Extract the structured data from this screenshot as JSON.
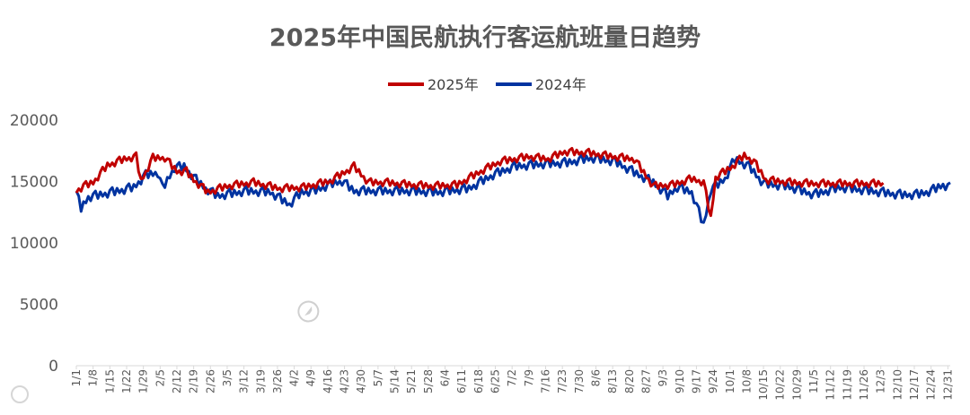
{
  "chart_data": {
    "type": "line",
    "title": "2025年中国民航执行客运航班量日趋势",
    "ylim": [
      0,
      20000
    ],
    "yticks": [
      "20000",
      "15000",
      "10000",
      "5000",
      "0"
    ],
    "x_tick_labels": [
      "1/1",
      "1/8",
      "1/15",
      "1/22",
      "1/29",
      "2/5",
      "2/12",
      "2/19",
      "2/26",
      "3/5",
      "3/12",
      "3/19",
      "3/26",
      "4/2",
      "4/9",
      "4/16",
      "4/23",
      "4/30",
      "5/7",
      "5/14",
      "5/21",
      "5/28",
      "6/4",
      "6/11",
      "6/18",
      "6/25",
      "7/2",
      "7/9",
      "7/16",
      "7/23",
      "7/30",
      "8/6",
      "8/13",
      "8/20",
      "8/27",
      "9/3",
      "9/10",
      "9/17",
      "9/24",
      "10/1",
      "10/8",
      "10/15",
      "10/22",
      "10/29",
      "11/5",
      "11/12",
      "11/19",
      "11/26",
      "12/3",
      "12/10",
      "12/17",
      "12/24",
      "12/31"
    ],
    "series": [
      {
        "name": "2025年",
        "color": "#c00000",
        "anchors": [
          [
            1,
            14200
          ],
          [
            4,
            14600
          ],
          [
            8,
            14900
          ],
          [
            14,
            16300
          ],
          [
            21,
            16800
          ],
          [
            26,
            17000
          ],
          [
            28,
            15000
          ],
          [
            33,
            16900
          ],
          [
            38,
            16900
          ],
          [
            43,
            15800
          ],
          [
            47,
            15800
          ],
          [
            50,
            15100
          ],
          [
            56,
            14100
          ],
          [
            64,
            14600
          ],
          [
            75,
            14900
          ],
          [
            86,
            14400
          ],
          [
            96,
            14500
          ],
          [
            107,
            15000
          ],
          [
            117,
            16200
          ],
          [
            123,
            14900
          ],
          [
            130,
            14900
          ],
          [
            141,
            14700
          ],
          [
            150,
            14600
          ],
          [
            160,
            14700
          ],
          [
            170,
            15800
          ],
          [
            178,
            16600
          ],
          [
            190,
            17000
          ],
          [
            198,
            16800
          ],
          [
            205,
            17400
          ],
          [
            215,
            17300
          ],
          [
            225,
            17000
          ],
          [
            234,
            16800
          ],
          [
            242,
            14600
          ],
          [
            250,
            14700
          ],
          [
            258,
            15200
          ],
          [
            263,
            14900
          ],
          [
            266,
            12000
          ],
          [
            268,
            15300
          ],
          [
            275,
            16200
          ],
          [
            280,
            17100
          ],
          [
            284,
            16600
          ],
          [
            289,
            15100
          ],
          [
            299,
            14900
          ],
          [
            309,
            14800
          ],
          [
            320,
            14800
          ],
          [
            331,
            14800
          ],
          [
            338,
            14800
          ]
        ]
      },
      {
        "name": "2024年",
        "color": "#0033a0",
        "anchors": [
          [
            1,
            14000
          ],
          [
            3,
            12800
          ],
          [
            6,
            13700
          ],
          [
            16,
            14100
          ],
          [
            25,
            14500
          ],
          [
            30,
            15500
          ],
          [
            35,
            15700
          ],
          [
            37,
            14400
          ],
          [
            42,
            16100
          ],
          [
            46,
            16200
          ],
          [
            50,
            15300
          ],
          [
            55,
            14400
          ],
          [
            60,
            13800
          ],
          [
            72,
            14200
          ],
          [
            82,
            14100
          ],
          [
            90,
            13100
          ],
          [
            95,
            14100
          ],
          [
            100,
            14200
          ],
          [
            108,
            14800
          ],
          [
            112,
            15000
          ],
          [
            117,
            14200
          ],
          [
            125,
            14200
          ],
          [
            140,
            14200
          ],
          [
            152,
            14100
          ],
          [
            165,
            14400
          ],
          [
            175,
            15500
          ],
          [
            184,
            16200
          ],
          [
            196,
            16400
          ],
          [
            206,
            16500
          ],
          [
            216,
            16900
          ],
          [
            226,
            16600
          ],
          [
            235,
            15600
          ],
          [
            242,
            14900
          ],
          [
            248,
            13800
          ],
          [
            252,
            14500
          ],
          [
            258,
            14100
          ],
          [
            263,
            11400
          ],
          [
            266,
            14300
          ],
          [
            272,
            15200
          ],
          [
            276,
            16800
          ],
          [
            282,
            16200
          ],
          [
            288,
            14800
          ],
          [
            298,
            14600
          ],
          [
            309,
            13900
          ],
          [
            320,
            14500
          ],
          [
            333,
            14200
          ],
          [
            345,
            13900
          ],
          [
            352,
            13900
          ],
          [
            358,
            14200
          ],
          [
            363,
            14700
          ],
          [
            366,
            14500
          ]
        ]
      }
    ]
  }
}
